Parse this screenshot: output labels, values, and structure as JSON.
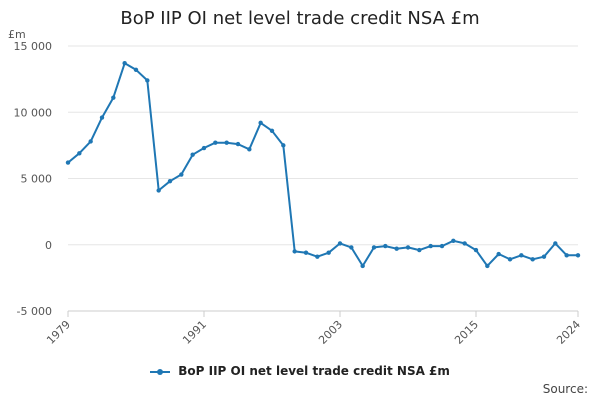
{
  "title": "BoP IIP OI net level trade credit NSA £m",
  "y_unit": "£m",
  "source_label": "Source:",
  "colors": {
    "series": "#1f77b4",
    "grid": "#e6e6e6",
    "axis": "#cccccc"
  },
  "chart_data": {
    "type": "line",
    "title": "BoP IIP OI net level trade credit NSA £m",
    "xlabel": "",
    "ylabel": "£m",
    "ylim": [
      -5000,
      15000
    ],
    "xlim": [
      1979,
      2024
    ],
    "y_ticks": [
      -5000,
      0,
      5000,
      10000,
      15000
    ],
    "y_tick_labels": [
      "-5 000",
      "0",
      "5 000",
      "10 000",
      "15 000"
    ],
    "x_ticks": [
      1979,
      1991,
      2003,
      2015,
      2024
    ],
    "x_tick_labels": [
      "1979",
      "1991",
      "2003",
      "2015",
      "2024"
    ],
    "grid": "horizontal",
    "legend_position": "bottom",
    "series": [
      {
        "name": "BoP IIP OI net level trade credit NSA £m",
        "x": [
          1979,
          1980,
          1981,
          1982,
          1983,
          1984,
          1985,
          1986,
          1987,
          1988,
          1989,
          1990,
          1991,
          1992,
          1993,
          1994,
          1995,
          1996,
          1997,
          1998,
          1999,
          2000,
          2001,
          2002,
          2003,
          2004,
          2005,
          2006,
          2007,
          2008,
          2009,
          2010,
          2011,
          2012,
          2013,
          2014,
          2015,
          2016,
          2017,
          2018,
          2019,
          2020,
          2021,
          2022,
          2023,
          2024
        ],
        "values": [
          6200,
          6900,
          7800,
          9600,
          11100,
          13700,
          13200,
          12400,
          4100,
          4800,
          5300,
          6800,
          7300,
          7700,
          7700,
          7600,
          7200,
          9200,
          8600,
          7500,
          -500,
          -600,
          -900,
          -600,
          100,
          -200,
          -1600,
          -200,
          -100,
          -300,
          -200,
          -400,
          -100,
          -100,
          300,
          100,
          -400,
          -1600,
          -700,
          -1100,
          -800,
          -1100,
          -900,
          100,
          -800,
          -800
        ]
      }
    ]
  }
}
